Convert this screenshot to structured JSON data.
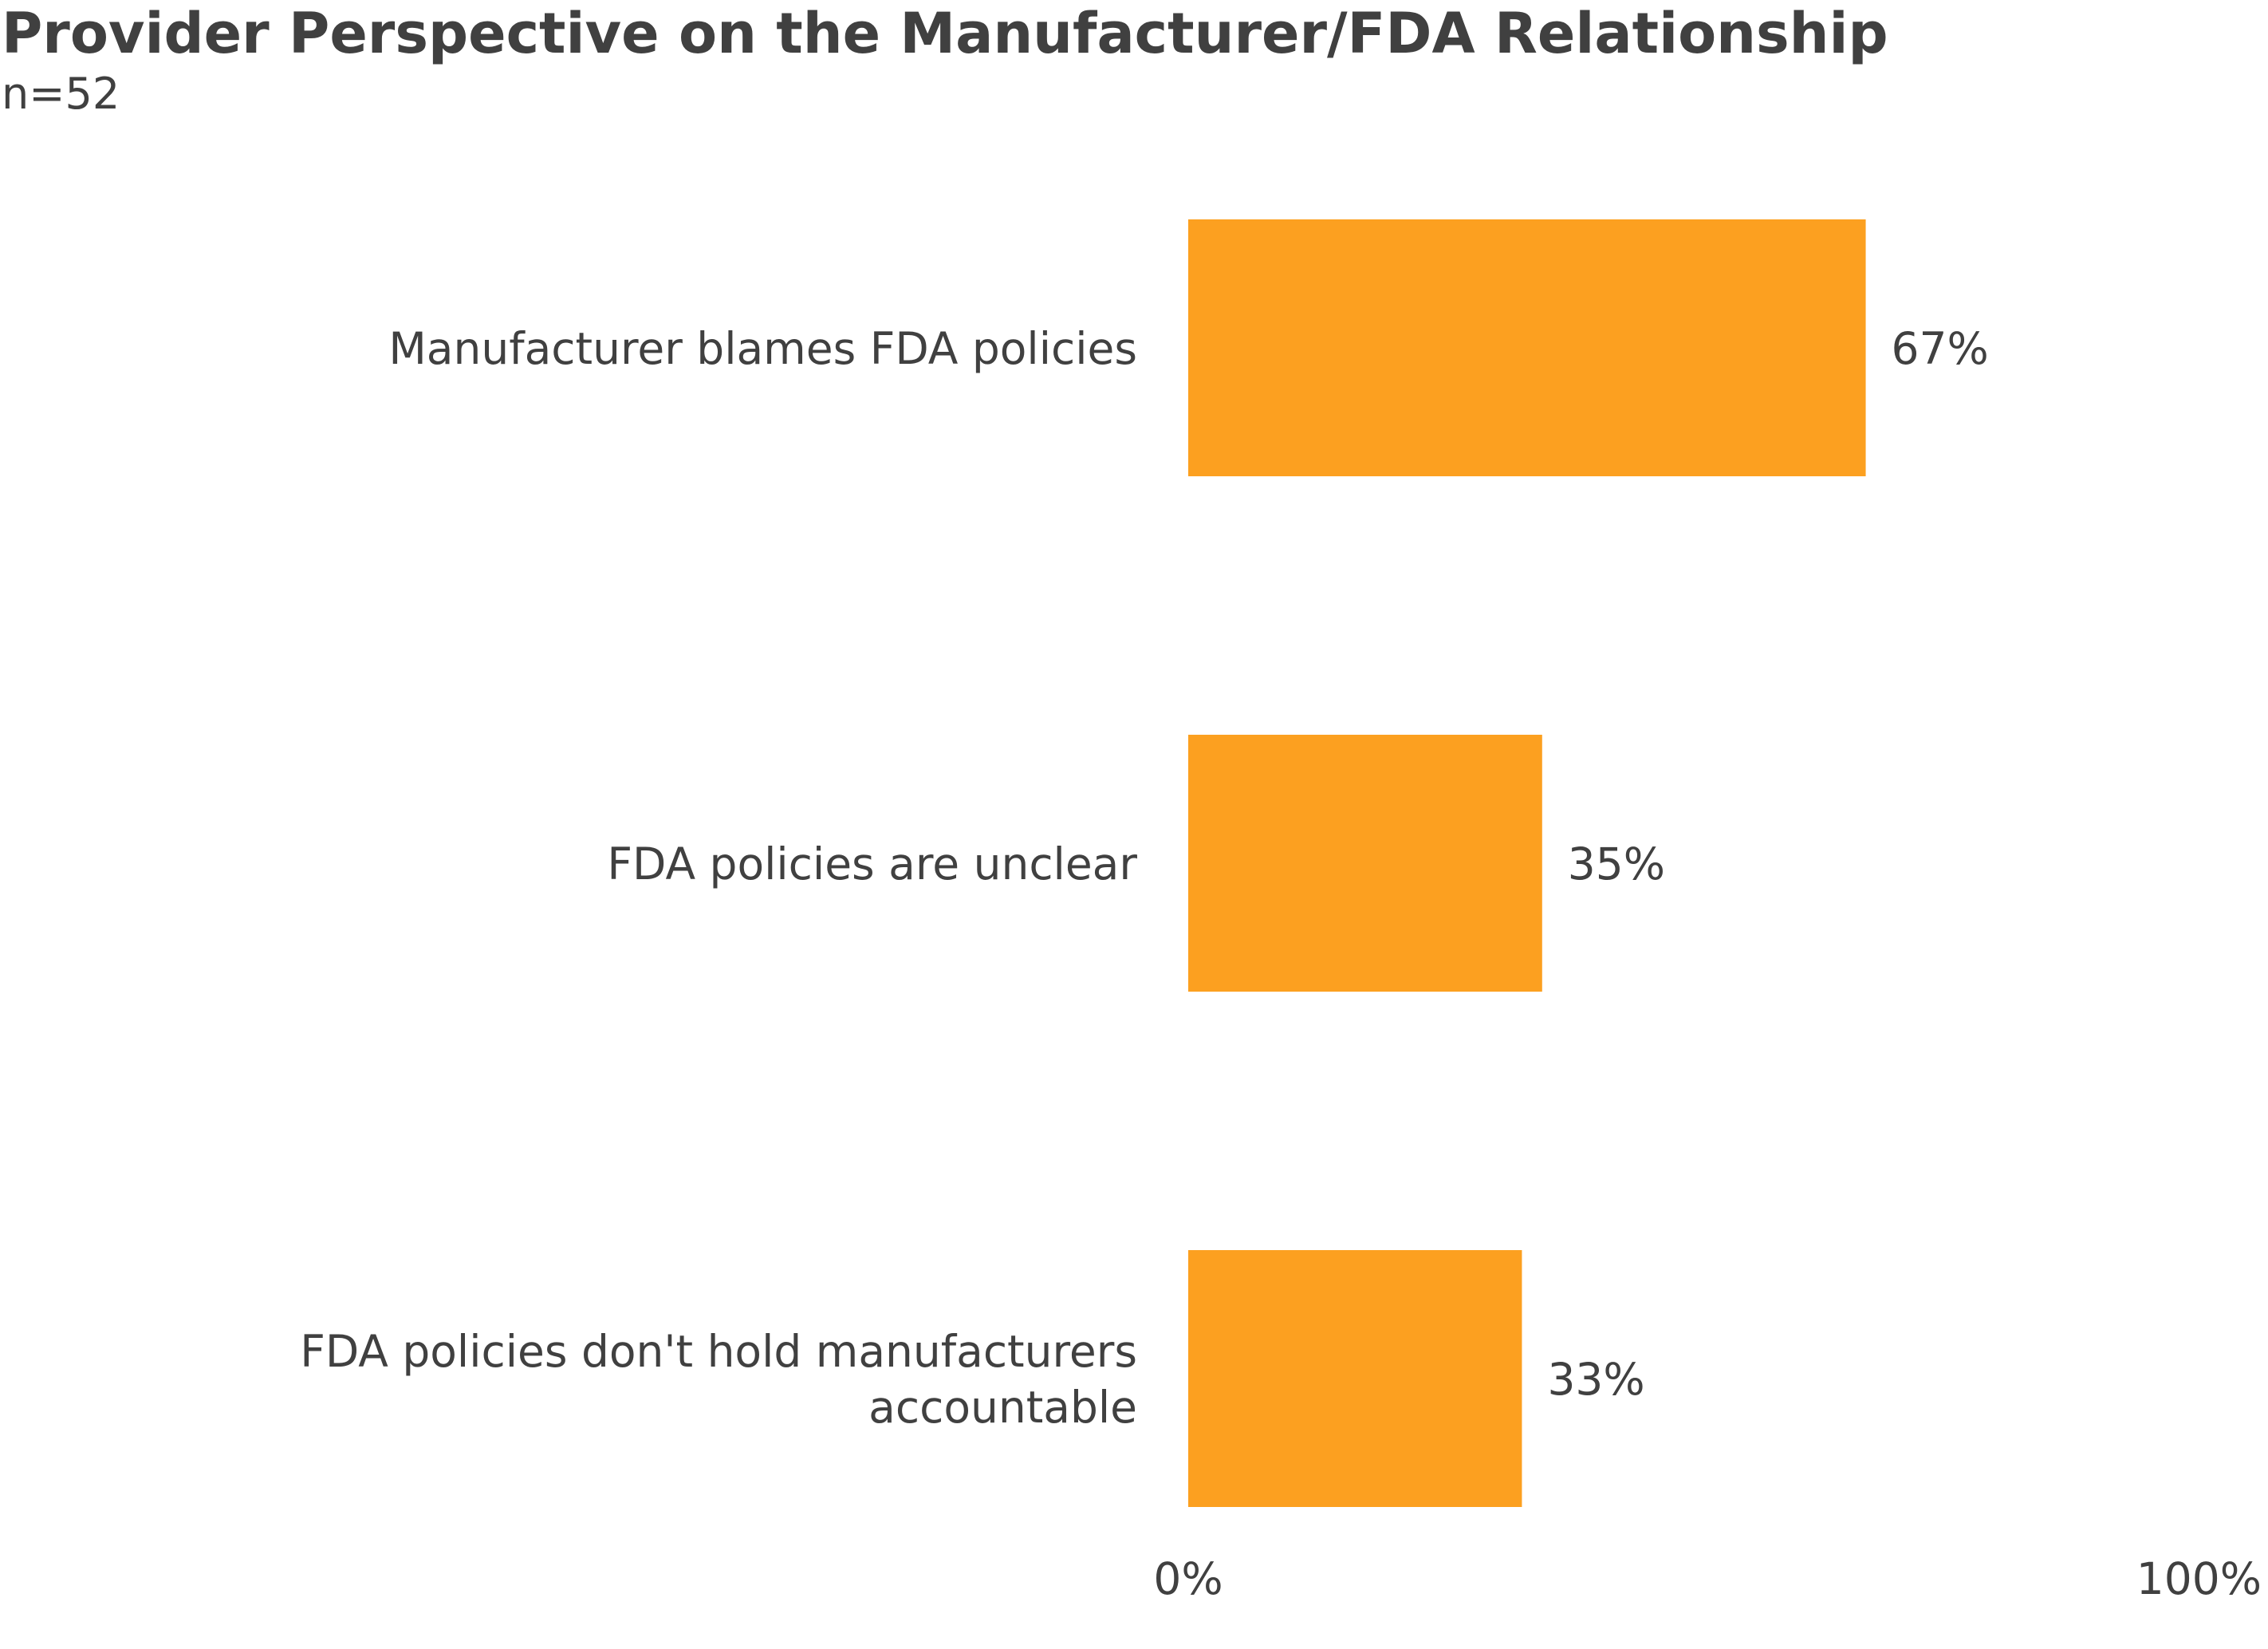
{
  "chart_data": {
    "type": "bar",
    "orientation": "horizontal",
    "title": "Provider Perspective on the Manufacturer/FDA Relationship",
    "subtitle": "n=52",
    "categories": [
      [
        "Manufacturer blames FDA policies"
      ],
      [
        "FDA policies are unclear"
      ],
      [
        "FDA policies don't hold manufacturers",
        "accountable"
      ]
    ],
    "values": [
      67,
      35,
      33
    ],
    "value_labels": [
      "67%",
      "35%",
      "33%"
    ],
    "xlim": [
      0,
      100
    ],
    "x_tick_labels": [
      "0%",
      "100%"
    ],
    "grid": false,
    "legend": "none",
    "bar_color": "#FCA020",
    "text_color": "#404040"
  }
}
